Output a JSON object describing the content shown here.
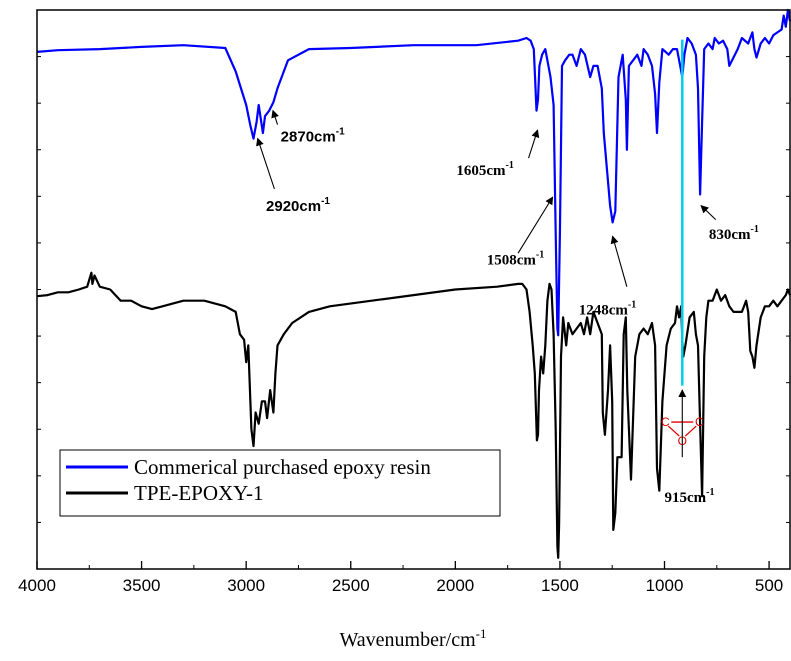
{
  "chart_data": {
    "type": "line",
    "xlabel": "Wavenumber/cm",
    "xlabel_sup": "-1",
    "ylabel": "",
    "xlim": [
      4000,
      400
    ],
    "x_reversed": true,
    "y_ticks_labeled": false,
    "x_ticks": [
      "4000",
      "3500",
      "3000",
      "2500",
      "2000",
      "1500",
      "1000",
      "500"
    ],
    "x_tick_values": [
      4000,
      3500,
      3000,
      2500,
      2000,
      1500,
      1000,
      500
    ],
    "series": [
      {
        "name": "Commerical purchased epoxy resin",
        "color": "#0000ff",
        "x": [
          4000,
          3900,
          3700,
          3500,
          3300,
          3100,
          3050,
          3000,
          2980,
          2965,
          2950,
          2940,
          2920,
          2910,
          2890,
          2870,
          2850,
          2800,
          2700,
          2500,
          2200,
          1900,
          1700,
          1660,
          1640,
          1625,
          1612,
          1605,
          1598,
          1585,
          1570,
          1545,
          1530,
          1520,
          1512,
          1508,
          1500,
          1490,
          1475,
          1455,
          1440,
          1420,
          1400,
          1380,
          1355,
          1340,
          1320,
          1300,
          1290,
          1260,
          1248,
          1235,
          1220,
          1200,
          1185,
          1180,
          1170,
          1150,
          1130,
          1110,
          1100,
          1080,
          1060,
          1045,
          1036,
          1025,
          1010,
          980,
          960,
          940,
          925,
          915,
          905,
          890,
          870,
          850,
          840,
          830,
          820,
          810,
          790,
          770,
          760,
          740,
          720,
          700,
          690,
          670,
          650,
          630,
          600,
          580,
          570,
          560,
          540,
          520,
          500,
          480,
          460,
          440,
          430,
          420,
          410,
          400
        ],
        "y": [
          0.925,
          0.928,
          0.93,
          0.934,
          0.937,
          0.932,
          0.89,
          0.83,
          0.794,
          0.77,
          0.8,
          0.83,
          0.78,
          0.81,
          0.82,
          0.835,
          0.86,
          0.91,
          0.93,
          0.932,
          0.937,
          0.937,
          0.945,
          0.95,
          0.945,
          0.93,
          0.82,
          0.84,
          0.9,
          0.92,
          0.93,
          0.88,
          0.83,
          0.6,
          0.43,
          0.418,
          0.6,
          0.9,
          0.91,
          0.92,
          0.92,
          0.9,
          0.93,
          0.92,
          0.88,
          0.9,
          0.9,
          0.86,
          0.78,
          0.65,
          0.62,
          0.64,
          0.88,
          0.92,
          0.84,
          0.75,
          0.9,
          0.91,
          0.92,
          0.9,
          0.93,
          0.92,
          0.9,
          0.85,
          0.78,
          0.87,
          0.93,
          0.92,
          0.93,
          0.93,
          0.9,
          0.88,
          0.92,
          0.95,
          0.94,
          0.92,
          0.86,
          0.67,
          0.8,
          0.93,
          0.94,
          0.93,
          0.95,
          0.94,
          0.945,
          0.93,
          0.9,
          0.915,
          0.93,
          0.95,
          0.94,
          0.96,
          0.93,
          0.915,
          0.94,
          0.95,
          0.94,
          0.955,
          0.96,
          0.965,
          0.99,
          0.97,
          1.0,
          0.98
        ]
      },
      {
        "name": "TPE-EPOXY-1",
        "color": "#000000",
        "x": [
          4000,
          3950,
          3900,
          3850,
          3800,
          3760,
          3740,
          3735,
          3725,
          3700,
          3650,
          3600,
          3550,
          3500,
          3450,
          3400,
          3300,
          3200,
          3100,
          3050,
          3030,
          3010,
          3000,
          2990,
          2975,
          2965,
          2955,
          2940,
          2925,
          2910,
          2900,
          2885,
          2870,
          2860,
          2850,
          2820,
          2780,
          2700,
          2600,
          2400,
          2200,
          2000,
          1800,
          1700,
          1680,
          1660,
          1645,
          1630,
          1620,
          1610,
          1605,
          1600,
          1590,
          1580,
          1570,
          1560,
          1550,
          1540,
          1530,
          1520,
          1512,
          1508,
          1504,
          1495,
          1485,
          1470,
          1460,
          1450,
          1440,
          1420,
          1400,
          1385,
          1370,
          1355,
          1340,
          1320,
          1300,
          1295,
          1285,
          1270,
          1260,
          1250,
          1245,
          1235,
          1225,
          1205,
          1195,
          1185,
          1178,
          1160,
          1140,
          1120,
          1100,
          1080,
          1060,
          1045,
          1036,
          1025,
          1010,
          990,
          970,
          950,
          940,
          930,
          920,
          915,
          910,
          900,
          880,
          860,
          850,
          840,
          830,
          820,
          810,
          800,
          790,
          770,
          750,
          730,
          710,
          690,
          670,
          650,
          630,
          610,
          600,
          590,
          580,
          570,
          560,
          540,
          520,
          500,
          480,
          460,
          440,
          420,
          410,
          400
        ],
        "y": [
          0.488,
          0.49,
          0.495,
          0.495,
          0.5,
          0.505,
          0.53,
          0.51,
          0.525,
          0.505,
          0.5,
          0.48,
          0.48,
          0.47,
          0.465,
          0.47,
          0.48,
          0.48,
          0.47,
          0.46,
          0.42,
          0.41,
          0.37,
          0.4,
          0.25,
          0.22,
          0.28,
          0.26,
          0.3,
          0.3,
          0.27,
          0.32,
          0.28,
          0.35,
          0.4,
          0.42,
          0.44,
          0.46,
          0.47,
          0.48,
          0.49,
          0.5,
          0.505,
          0.51,
          0.51,
          0.5,
          0.46,
          0.4,
          0.35,
          0.23,
          0.24,
          0.32,
          0.38,
          0.35,
          0.4,
          0.48,
          0.51,
          0.5,
          0.42,
          0.25,
          0.04,
          0.02,
          0.08,
          0.38,
          0.45,
          0.4,
          0.44,
          0.43,
          0.42,
          0.43,
          0.44,
          0.42,
          0.45,
          0.42,
          0.46,
          0.44,
          0.42,
          0.28,
          0.24,
          0.32,
          0.4,
          0.3,
          0.07,
          0.1,
          0.2,
          0.2,
          0.42,
          0.45,
          0.32,
          0.16,
          0.38,
          0.42,
          0.43,
          0.42,
          0.44,
          0.4,
          0.18,
          0.14,
          0.3,
          0.4,
          0.43,
          0.44,
          0.47,
          0.45,
          0.47,
          0.41,
          0.38,
          0.4,
          0.45,
          0.46,
          0.42,
          0.4,
          0.26,
          0.13,
          0.38,
          0.45,
          0.48,
          0.48,
          0.5,
          0.48,
          0.49,
          0.47,
          0.46,
          0.46,
          0.46,
          0.48,
          0.46,
          0.39,
          0.38,
          0.36,
          0.4,
          0.45,
          0.47,
          0.47,
          0.48,
          0.47,
          0.48,
          0.49,
          0.5,
          0.49
        ]
      }
    ],
    "annotations": [
      {
        "text": "2870cm",
        "sup": "-1",
        "style": "bold-sans",
        "label_wn": 2835,
        "label_y": 0.765,
        "arrow_from_wn": 2850,
        "arrow_from_y": 0.795,
        "arrow_to_wn": 2872,
        "arrow_to_y": 0.82
      },
      {
        "text": "2920cm",
        "sup": "-1",
        "style": "bold-sans",
        "label_wn": 2905,
        "label_y": 0.64,
        "arrow_from_wn": 2865,
        "arrow_from_y": 0.68,
        "arrow_to_wn": 2945,
        "arrow_to_y": 0.77
      },
      {
        "text": "1605cm",
        "sup": "-1",
        "style": "bold-serif",
        "label_wn": 1995,
        "label_y": 0.705,
        "arrow_from_wn": 1650,
        "arrow_from_y": 0.735,
        "arrow_to_wn": 1607,
        "arrow_to_y": 0.785
      },
      {
        "text": "1508cm",
        "sup": "-1",
        "style": "bold-serif",
        "label_wn": 1850,
        "label_y": 0.545,
        "arrow_from_wn": 1700,
        "arrow_from_y": 0.565,
        "arrow_to_wn": 1535,
        "arrow_to_y": 0.665
      },
      {
        "text": "1248cm",
        "sup": "-1",
        "style": "bold-serif",
        "label_wn": 1410,
        "label_y": 0.455,
        "arrow_from_wn": 1180,
        "arrow_from_y": 0.505,
        "arrow_to_wn": 1248,
        "arrow_to_y": 0.595
      },
      {
        "text": "830cm",
        "sup": "-1",
        "style": "bold-serif",
        "label_wn": 788,
        "label_y": 0.59,
        "arrow_from_wn": 755,
        "arrow_from_y": 0.625,
        "arrow_to_wn": 825,
        "arrow_to_y": 0.65
      },
      {
        "text": "915cm",
        "sup": "-1",
        "style": "bold-serif",
        "label_wn": 1000,
        "label_y": 0.12,
        "arrow_from_wn": 915,
        "arrow_from_y": 0.2,
        "arrow_to_wn": 915,
        "arrow_to_y": 0.32
      }
    ],
    "marker_line": {
      "wavenumber": 915,
      "y_top": 0.947,
      "y_bottom": 0.328,
      "color": "#00ccee"
    },
    "epoxide_ring": {
      "atoms": [
        "C",
        "C",
        "O"
      ],
      "color": "#e00000",
      "center_wn": 915,
      "center_y": 0.245
    },
    "legend": {
      "position": "lower-left",
      "boxed": true
    },
    "grid": false
  }
}
